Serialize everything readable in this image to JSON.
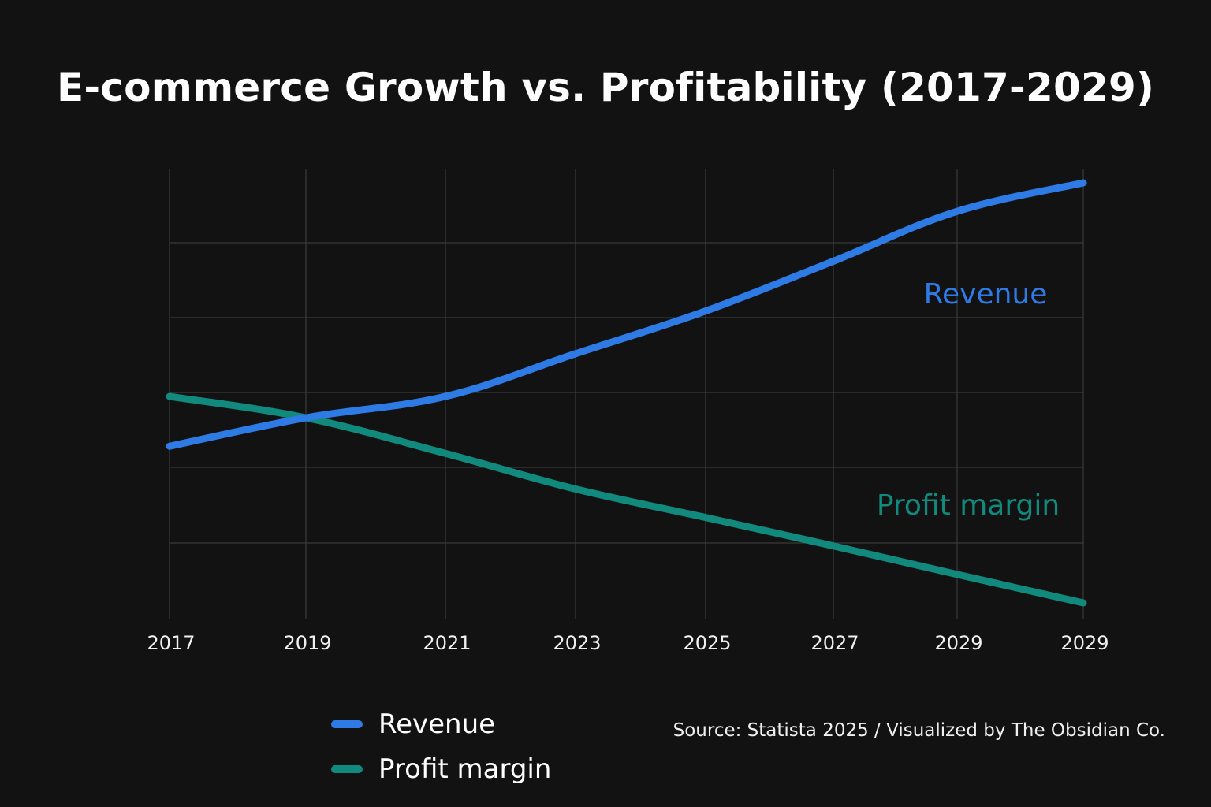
{
  "chart_data": {
    "type": "line",
    "title": "E-commerce Growth vs. Profitability (2017-2029)",
    "xlabel": "",
    "ylabel": "",
    "x": [
      "2017",
      "2019",
      "2021",
      "2023",
      "2025",
      "2027",
      "2029",
      "2029"
    ],
    "ylim": [
      0,
      6
    ],
    "grid": true,
    "legend_position": "bottom",
    "series": [
      {
        "name": "Revenue",
        "color": "#2f7be5",
        "values": [
          2.2,
          2.6,
          2.9,
          3.5,
          4.1,
          4.8,
          5.5,
          5.9
        ]
      },
      {
        "name": "Profit margin",
        "color": "#11897c",
        "values": [
          2.9,
          2.6,
          2.1,
          1.6,
          1.2,
          0.8,
          0.4,
          0.0
        ]
      }
    ],
    "annotations": [
      {
        "text": "Revenue",
        "series": "Revenue"
      },
      {
        "text": "Profit margin",
        "series": "Profit margin"
      }
    ],
    "source": "Source: Statista 2025 / Visualized by The Obsidian Co."
  }
}
